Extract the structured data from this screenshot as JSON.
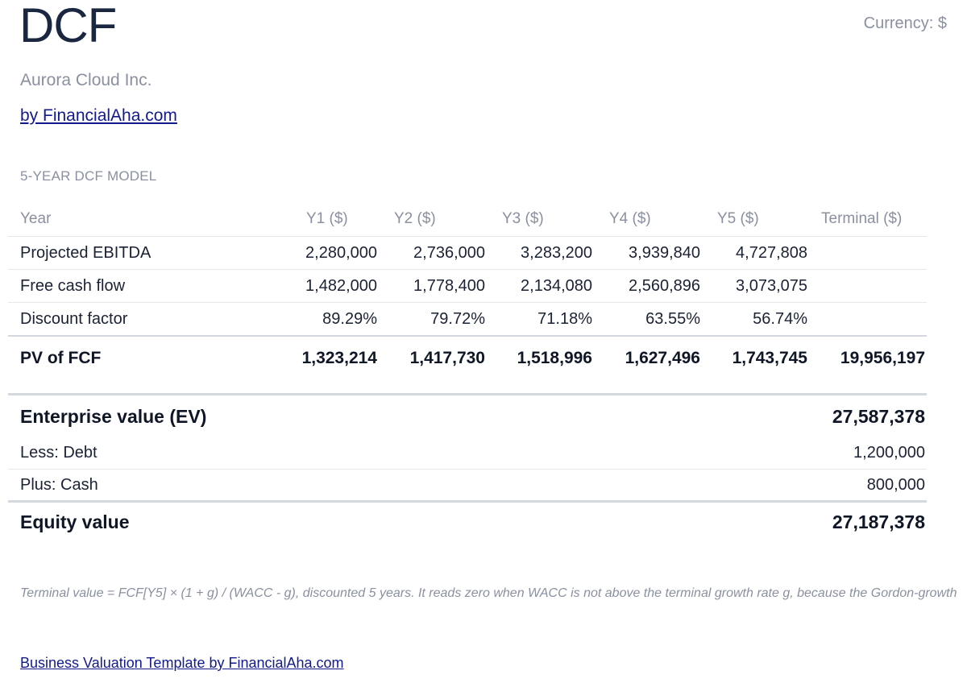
{
  "header": {
    "title": "DCF",
    "currency": "Currency: $",
    "company": "Aurora Cloud Inc.",
    "byline": "by FinancialAha.com"
  },
  "model": {
    "section_label": "5-YEAR DCF MODEL",
    "columns": [
      "Year",
      "Y1 ($)",
      "Y2 ($)",
      "Y3 ($)",
      "Y4 ($)",
      "Y5 ($)",
      "Terminal ($)"
    ],
    "rows": [
      {
        "label": "Projected EBITDA",
        "values": [
          "2,280,000",
          "2,736,000",
          "3,283,200",
          "3,939,840",
          "4,727,808",
          ""
        ]
      },
      {
        "label": "Free cash flow",
        "values": [
          "1,482,000",
          "1,778,400",
          "2,134,080",
          "2,560,896",
          "3,073,075",
          ""
        ]
      },
      {
        "label": "Discount factor",
        "values": [
          "89.29%",
          "79.72%",
          "71.18%",
          "63.55%",
          "56.74%",
          ""
        ]
      }
    ],
    "total": {
      "label": "PV of FCF",
      "values": [
        "1,323,214",
        "1,417,730",
        "1,518,996",
        "1,627,496",
        "1,743,745",
        "19,956,197"
      ]
    }
  },
  "valuation": {
    "ev_label": "Enterprise value (EV)",
    "ev_value": "27,587,378",
    "debt_label": "Less: Debt",
    "debt_value": "1,200,000",
    "cash_label": "Plus: Cash",
    "cash_value": "800,000",
    "equity_label": "Equity value",
    "equity_value": "27,187,378"
  },
  "footnote": "Terminal value = FCF[Y5] × (1 + g) / (WACC - g), discounted 5 years. It reads zero when WACC is not above the terminal growth rate g, because the Gordon-growth",
  "footer_link": "Business Valuation Template by FinancialAha.com"
}
